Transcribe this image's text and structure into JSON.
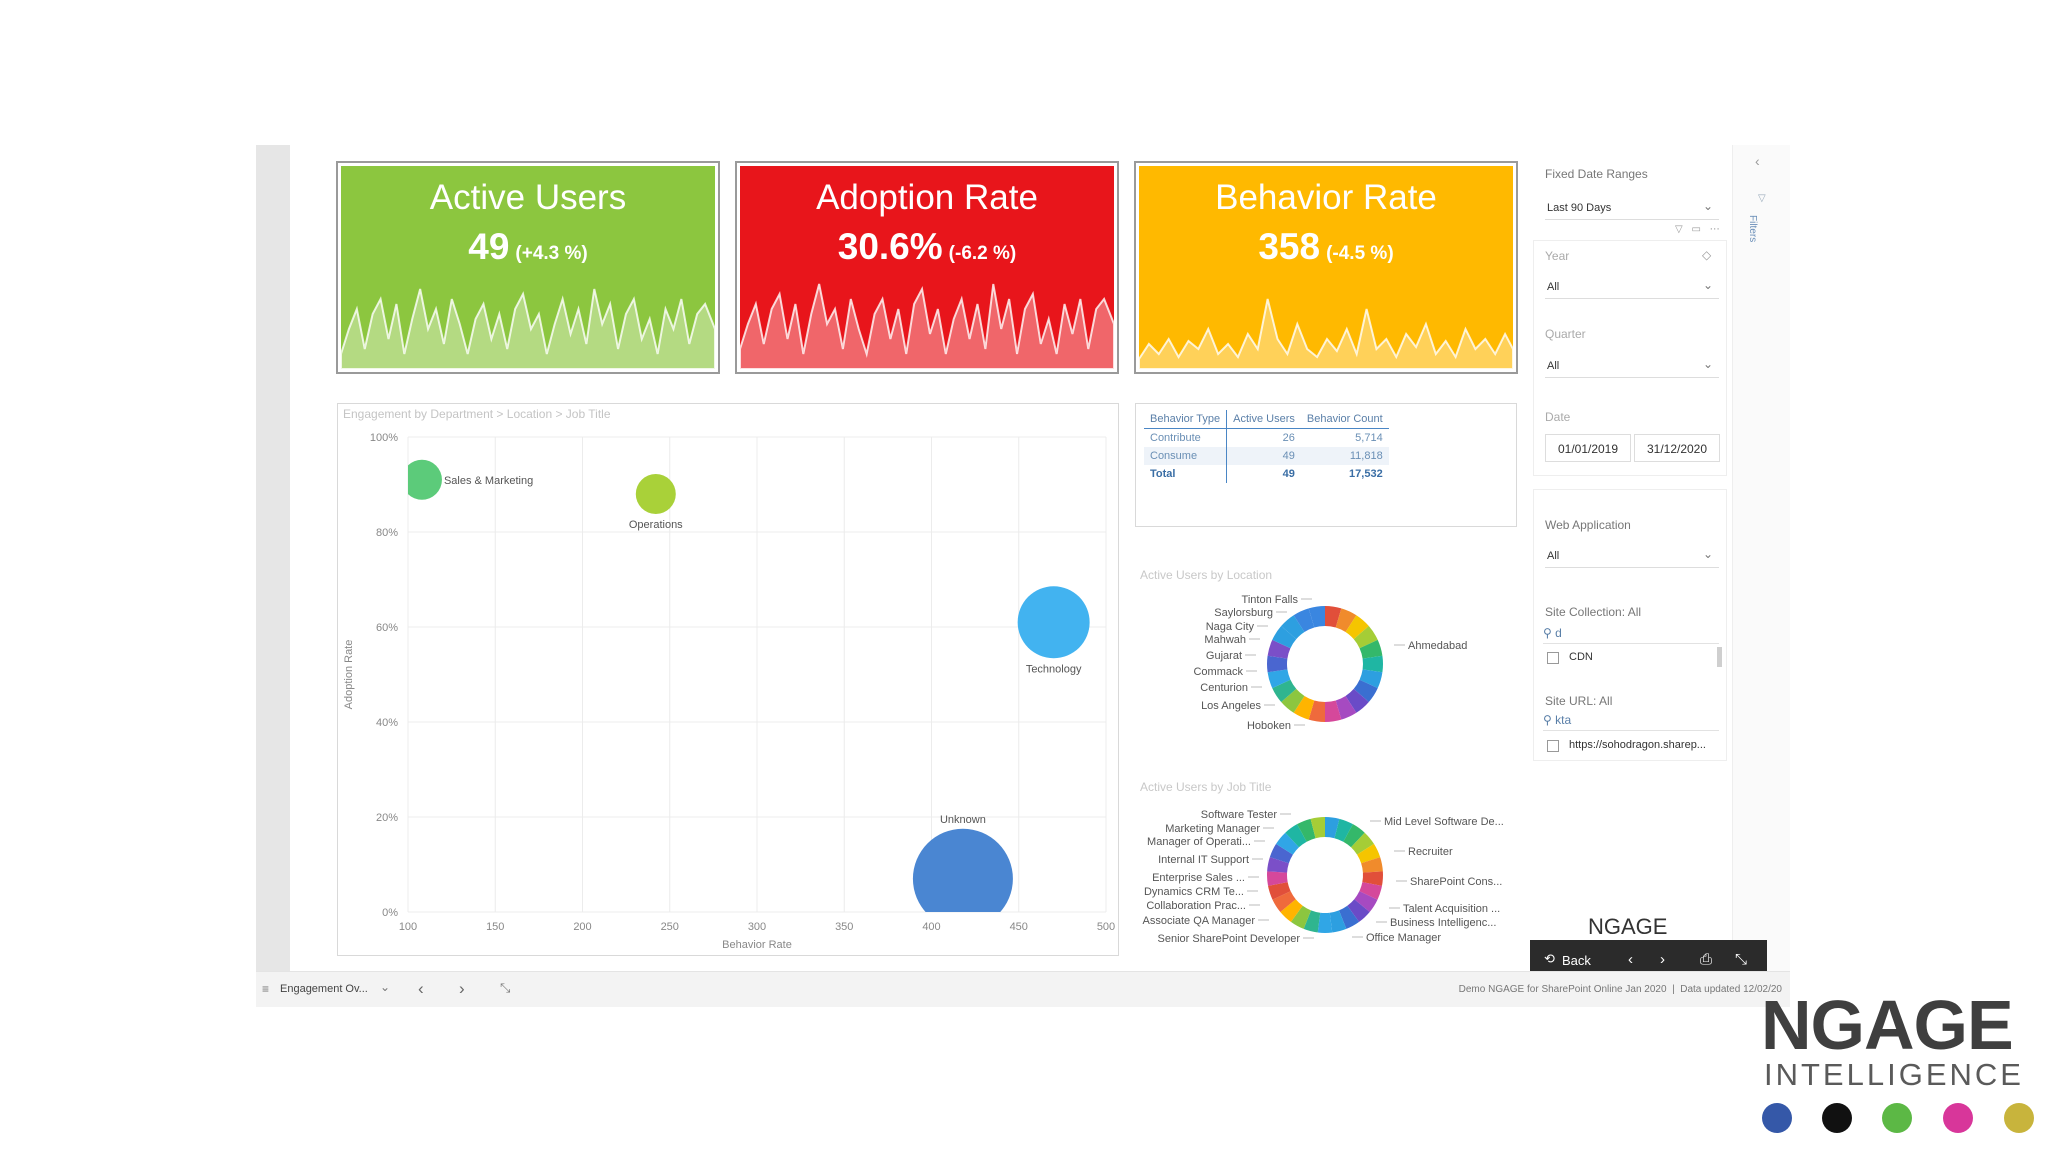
{
  "kpis": [
    {
      "title": "Active Users",
      "value": "49",
      "delta": "(+4.3 %)",
      "color": "#8cc63f"
    },
    {
      "title": "Adoption Rate",
      "value": "30.6%",
      "delta": "(-6.2 %)",
      "color": "#e8151b"
    },
    {
      "title": "Behavior Rate",
      "value": "358",
      "delta": "(-4.5 %)",
      "color": "#ffb900"
    }
  ],
  "bubble_panel": {
    "title": "Engagement by Department > Location > Job Title"
  },
  "chart_data": [
    {
      "type": "scatter",
      "title": "Engagement by Department > Location > Job Title",
      "xlabel": "Behavior Rate",
      "ylabel": "Adoption Rate",
      "xlim": [
        100,
        500
      ],
      "ylim": [
        0,
        100
      ],
      "x_ticks": [
        "100",
        "150",
        "200",
        "250",
        "300",
        "350",
        "400",
        "450",
        "500"
      ],
      "y_ticks": [
        "0%",
        "20%",
        "40%",
        "60%",
        "80%",
        "100%"
      ],
      "points": [
        {
          "label": "Sales & Marketing",
          "x": 108,
          "y": 91,
          "size": 10,
          "color": "#5ccb7a"
        },
        {
          "label": "Operations",
          "x": 242,
          "y": 88,
          "size": 10,
          "color": "#a9d139"
        },
        {
          "label": "Technology",
          "x": 470,
          "y": 61,
          "size": 18,
          "color": "#42b3f0"
        },
        {
          "label": "Unknown",
          "x": 418,
          "y": 7,
          "size": 25,
          "color": "#4a86d2"
        }
      ]
    },
    {
      "type": "table",
      "columns": [
        "Behavior Type",
        "Active Users",
        "Behavior Count"
      ],
      "rows": [
        [
          "Contribute",
          "26",
          "5,714"
        ],
        [
          "Consume",
          "49",
          "11,818"
        ],
        [
          "Total",
          "49",
          "17,532"
        ]
      ]
    },
    {
      "type": "pie",
      "title": "Active Users by Location",
      "labels": [
        "Tinton Falls",
        "Saylorsburg",
        "Naga City",
        "Mahwah",
        "Gujarat",
        "Commack",
        "Centurion",
        "Los Angeles",
        "Hoboken",
        "Ahmedabad"
      ]
    },
    {
      "type": "pie",
      "title": "Active Users by Job Title",
      "labels": [
        "Software Tester",
        "Marketing Manager",
        "Manager of Operati...",
        "Internal IT Support",
        "Enterprise Sales ...",
        "Dynamics CRM Te...",
        "Collaboration Prac...",
        "Associate QA Manager",
        "Senior SharePoint Developer",
        "Mid Level Software De...",
        "Recruiter",
        "SharePoint Cons...",
        "Talent Acquisition ...",
        "Business Intelligenc...",
        "Office Manager"
      ]
    }
  ],
  "table": {
    "headers": [
      "Behavior Type",
      "Active Users",
      "Behavior Count"
    ],
    "rows": [
      {
        "type": "Contribute",
        "users": "26",
        "count": "5,714"
      },
      {
        "type": "Consume",
        "users": "49",
        "count": "11,818"
      },
      {
        "type": "Total",
        "users": "49",
        "count": "17,532"
      }
    ]
  },
  "donuts": {
    "location_title": "Active Users by Location",
    "jobtitle_title": "Active Users by Job Title"
  },
  "filters": {
    "fixed_date_label": "Fixed Date Ranges",
    "fixed_date_value": "Last 90 Days",
    "year_label": "Year",
    "year_value": "All",
    "quarter_label": "Quarter",
    "quarter_value": "All",
    "date_label": "Date",
    "date_from": "01/01/2019",
    "date_to": "31/12/2020",
    "webapp_label": "Web Application",
    "webapp_value": "All",
    "site_collection_label": "Site Collection: All",
    "site_collection_search": "d",
    "site_collection_item": "CDN",
    "site_url_label": "Site URL: All",
    "site_url_search": "kta",
    "site_url_item": "https://sohodragon.sharep...",
    "filters_tab": "Filters"
  },
  "nav": {
    "brand": "NGAGE",
    "back_label": "Back"
  },
  "bottom_bar": {
    "page_name": "Engagement Ov...",
    "status": "Demo NGAGE for SharePoint Online Jan 2020  |  Data updated 12/02/20"
  },
  "branding": {
    "logo_text": "NGAGE",
    "logo_sub": "INTELLIGENCE",
    "dots": [
      "#3558a8",
      "#111111",
      "#5cb845",
      "#d8369a",
      "#c8b43c"
    ]
  }
}
